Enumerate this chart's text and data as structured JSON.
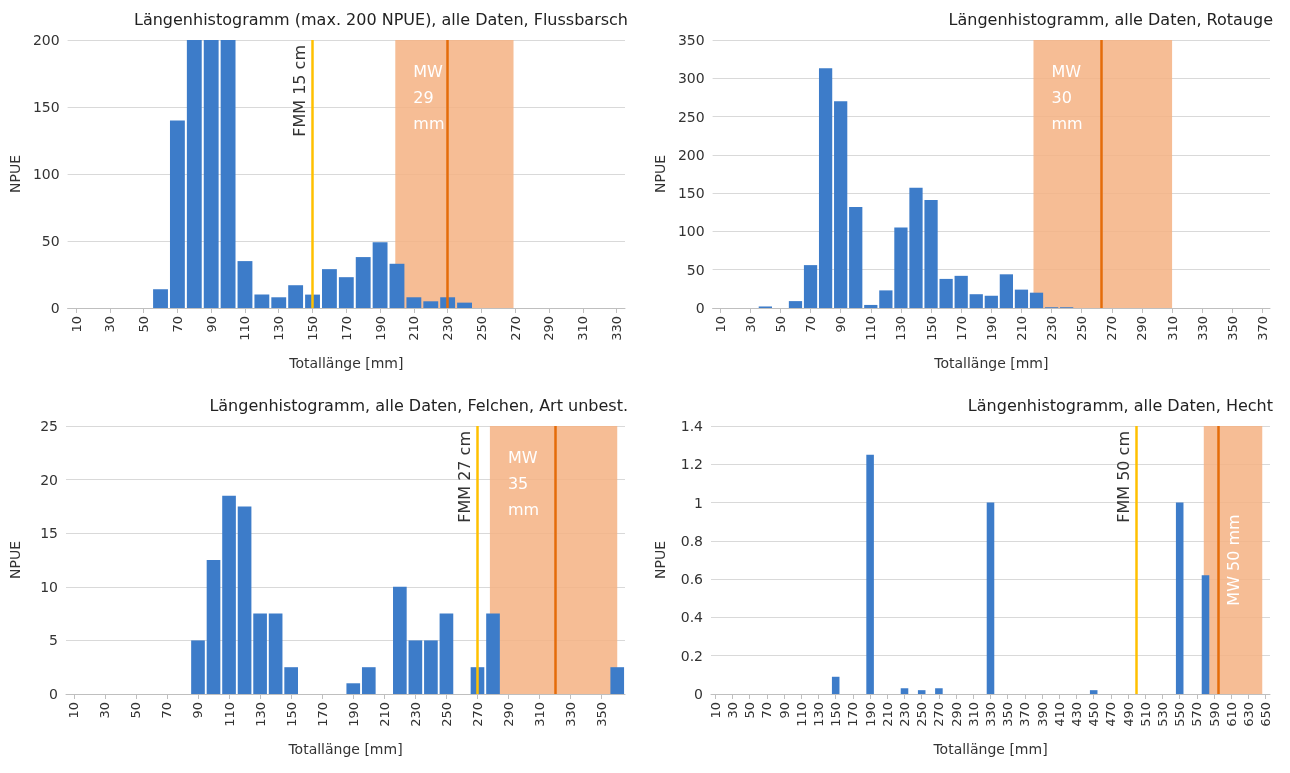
{
  "chart_data": [
    {
      "type": "histogram",
      "title": "Längenhistogramm (max. 200 NPUE), alle Daten, Flussbarsch",
      "xlabel": "Totallänge [mm]",
      "ylabel": "NPUE",
      "color": "#3d7cc9",
      "bins": [
        5,
        15,
        25,
        35,
        45,
        55,
        65,
        75,
        85,
        95,
        105,
        115,
        125,
        135,
        145,
        155,
        165,
        175,
        185,
        195,
        205,
        215,
        225,
        235,
        245,
        255,
        265,
        275,
        285,
        295,
        305,
        315,
        325,
        335
      ],
      "values": [
        0,
        0,
        0,
        0,
        0,
        14,
        140,
        200,
        200,
        200,
        35,
        10,
        8,
        17,
        10,
        29,
        23,
        38,
        49,
        33,
        8,
        5,
        8,
        4,
        0,
        0,
        0,
        0,
        0,
        0,
        0,
        0,
        0
      ],
      "xlim": [
        5,
        335
      ],
      "xticks": [
        10,
        30,
        50,
        70,
        90,
        110,
        130,
        150,
        170,
        190,
        210,
        230,
        250,
        270,
        290,
        310,
        330
      ],
      "ylim": [
        0,
        200
      ],
      "yticks": [
        0,
        50,
        100,
        150,
        200
      ],
      "grid": "y",
      "ref_lines": [
        {
          "axis": "x",
          "value": 150,
          "label": "FMM 15 cm",
          "color": "#ffc000"
        },
        {
          "axis": "x",
          "value": 230,
          "label": null,
          "color": "#e46c0a"
        }
      ],
      "bands": [
        {
          "axis": "x",
          "from": 199,
          "to": 269,
          "label": "MW 29 mm",
          "color": "#f4b183"
        }
      ]
    },
    {
      "type": "histogram",
      "title": "Längenhistogramm, alle Daten, Rotauge",
      "xlabel": "Totallänge [mm]",
      "ylabel": "NPUE",
      "color": "#3d7cc9",
      "bins": [
        5,
        15,
        25,
        35,
        45,
        55,
        65,
        75,
        85,
        95,
        105,
        115,
        125,
        135,
        145,
        155,
        165,
        175,
        185,
        195,
        205,
        215,
        225,
        235,
        245,
        255,
        265,
        275,
        285,
        295,
        305,
        315,
        325,
        335,
        345,
        355,
        365,
        375
      ],
      "values": [
        0,
        0,
        0,
        2,
        0,
        9,
        56,
        313,
        270,
        132,
        4,
        23,
        105,
        157,
        141,
        38,
        42,
        18,
        16,
        44,
        24,
        20,
        1,
        1,
        0,
        0,
        0,
        0,
        0,
        0,
        0,
        0,
        0,
        0,
        0,
        0,
        0
      ],
      "xlim": [
        5,
        375
      ],
      "xticks": [
        10,
        30,
        50,
        70,
        90,
        110,
        130,
        150,
        170,
        190,
        210,
        230,
        250,
        270,
        290,
        310,
        330,
        350,
        370
      ],
      "ylim": [
        0,
        350
      ],
      "yticks": [
        0,
        50,
        100,
        150,
        200,
        250,
        300,
        350
      ],
      "grid": "y",
      "ref_lines": [
        {
          "axis": "x",
          "value": 263,
          "label": null,
          "color": "#e46c0a"
        }
      ],
      "bands": [
        {
          "axis": "x",
          "from": 218,
          "to": 310,
          "label": "MW 30 mm",
          "color": "#f4b183"
        }
      ]
    },
    {
      "type": "histogram",
      "title": "Längenhistogramm, alle Daten, Felchen, Art unbest.",
      "xlabel": "Totallänge [mm]",
      "ylabel": "NPUE",
      "color": "#3d7cc9",
      "bins": [
        5,
        15,
        25,
        35,
        45,
        55,
        65,
        75,
        85,
        95,
        105,
        115,
        125,
        135,
        145,
        155,
        165,
        175,
        185,
        195,
        205,
        215,
        225,
        235,
        245,
        255,
        265,
        275,
        285,
        295,
        305,
        315,
        325,
        335,
        345,
        355,
        365
      ],
      "values": [
        0,
        0,
        0,
        0,
        0,
        0,
        0,
        0,
        5,
        12.5,
        18.5,
        17.5,
        7.5,
        7.5,
        2.5,
        0,
        0,
        0,
        1,
        2.5,
        0,
        10,
        5,
        5,
        7.5,
        0,
        2.5,
        7.5,
        0,
        0,
        0,
        0,
        0,
        0,
        0,
        2.5
      ],
      "xlim": [
        5,
        365
      ],
      "xticks": [
        10,
        30,
        50,
        70,
        90,
        110,
        130,
        150,
        170,
        190,
        210,
        230,
        250,
        270,
        290,
        310,
        330,
        350
      ],
      "ylim": [
        0,
        25
      ],
      "yticks": [
        0,
        5,
        10,
        15,
        20,
        25
      ],
      "grid": "y",
      "ref_lines": [
        {
          "axis": "x",
          "value": 270,
          "label": "FMM 27 cm",
          "color": "#ffc000"
        },
        {
          "axis": "x",
          "value": 320,
          "label": null,
          "color": "#e46c0a"
        }
      ],
      "bands": [
        {
          "axis": "x",
          "from": 278,
          "to": 360,
          "label": "MW 35 mm",
          "color": "#f4b183"
        }
      ]
    },
    {
      "type": "histogram",
      "title": "Längenhistogramm, alle Daten, Hecht",
      "xlabel": "Totallänge [mm]",
      "ylabel": "NPUE",
      "color": "#3d7cc9",
      "bins": [
        5,
        15,
        25,
        35,
        45,
        55,
        65,
        75,
        85,
        95,
        105,
        115,
        125,
        135,
        145,
        155,
        165,
        175,
        185,
        195,
        205,
        215,
        225,
        235,
        245,
        255,
        265,
        275,
        285,
        295,
        305,
        315,
        325,
        335,
        345,
        355,
        365,
        375,
        385,
        395,
        405,
        415,
        425,
        435,
        445,
        455,
        465,
        475,
        485,
        495,
        505,
        515,
        525,
        535,
        545,
        555,
        565,
        575,
        585,
        595,
        605,
        615,
        625,
        635,
        645,
        655
      ],
      "values": [
        0,
        0,
        0,
        0,
        0,
        0,
        0,
        0,
        0,
        0,
        0,
        0,
        0,
        0,
        0.09,
        0,
        0,
        0,
        1.25,
        0,
        0,
        0,
        0.03,
        0,
        0.02,
        0,
        0.03,
        0,
        0,
        0,
        0,
        0,
        1,
        0,
        0,
        0,
        0,
        0,
        0,
        0,
        0,
        0,
        0,
        0,
        0.02,
        0,
        0,
        0,
        0,
        0,
        0,
        0,
        0,
        0,
        1,
        0,
        0,
        0.62,
        0,
        0,
        0,
        0,
        0,
        0,
        0
      ],
      "xlim": [
        5,
        655
      ],
      "xticks": [
        10,
        30,
        50,
        70,
        90,
        110,
        130,
        150,
        170,
        190,
        210,
        230,
        250,
        270,
        290,
        310,
        330,
        350,
        370,
        390,
        410,
        430,
        450,
        470,
        490,
        510,
        530,
        550,
        570,
        590,
        610,
        630,
        650
      ],
      "ylim": [
        0,
        1.4
      ],
      "yticks": [
        0,
        0.2,
        0.4,
        0.6,
        0.8,
        1,
        1.2,
        1.4
      ],
      "grid": "y",
      "ref_lines": [
        {
          "axis": "x",
          "value": 500,
          "label": "FMM 50 cm",
          "color": "#ffc000"
        },
        {
          "axis": "x",
          "value": 595,
          "label": null,
          "color": "#e46c0a"
        }
      ],
      "bands": [
        {
          "axis": "x",
          "from": 578,
          "to": 646,
          "label": "MW 50 mm",
          "color": "#f4b183"
        }
      ]
    }
  ]
}
